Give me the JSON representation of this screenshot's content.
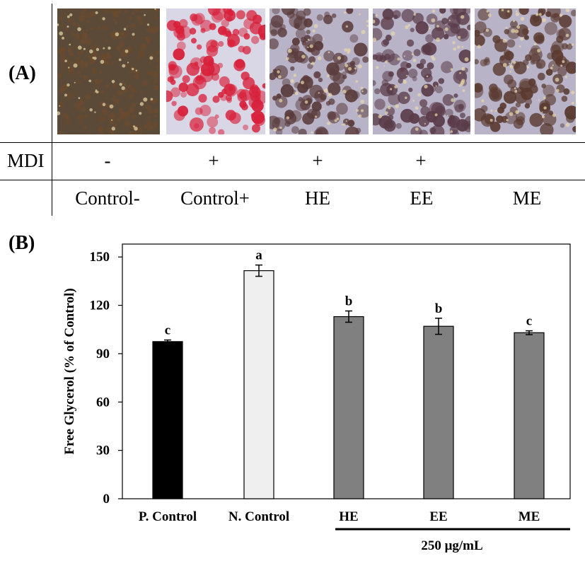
{
  "panel_a": {
    "label": "(A)",
    "row_label": "MDI",
    "treatments": [
      {
        "name": "Control-",
        "mdi": "-",
        "tint": "#6b4a2e"
      },
      {
        "name": "Control+",
        "mdi": "+",
        "tint": "#d8203a"
      },
      {
        "name": "HE",
        "mdi": "+",
        "tint": "#5a3b3b"
      },
      {
        "name": "EE",
        "mdi": "+",
        "tint": "#5a3b48"
      },
      {
        "name": "ME",
        "mdi": "",
        "tint": "#5a3a30"
      }
    ]
  },
  "panel_b": {
    "label": "(B)"
  },
  "chart_data": {
    "type": "bar",
    "title": "",
    "ylabel": "Free Glycerol (% of Control)",
    "xlabel": "",
    "ylim": [
      0,
      150
    ],
    "yticks": [
      0,
      30,
      60,
      90,
      120,
      150
    ],
    "categories": [
      "P. Control",
      "N. Control",
      "HE",
      "EE",
      "ME"
    ],
    "values": [
      97.5,
      141.5,
      113,
      107,
      103
    ],
    "errors": [
      1,
      3.5,
      3.5,
      5,
      1.2
    ],
    "significance": [
      "c",
      "a",
      "b",
      "b",
      "c"
    ],
    "bar_colors": [
      "#000000",
      "#efefef",
      "#808080",
      "#808080",
      "#808080"
    ],
    "group_label": "250 μg/mL",
    "grid": false,
    "legend": "none"
  }
}
